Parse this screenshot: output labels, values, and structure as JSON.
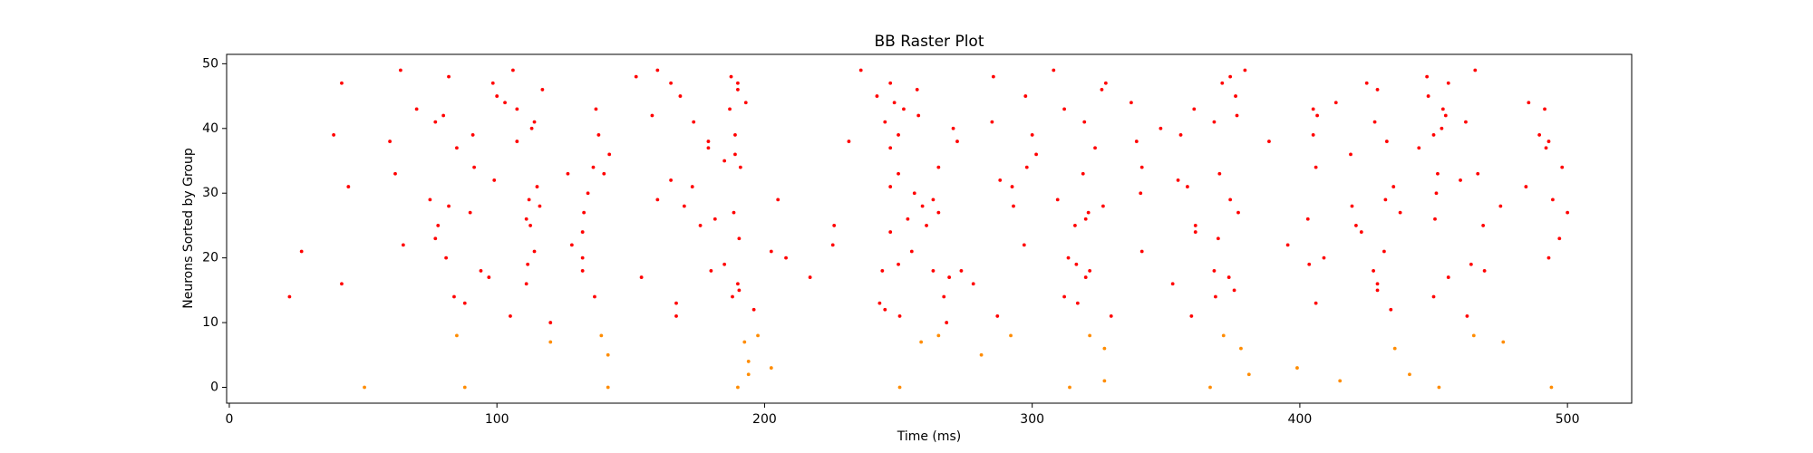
{
  "chart_data": {
    "type": "scatter",
    "title": "BB Raster Plot",
    "x_label": "Time (ms)",
    "y_label": "Neurons Sorted by Group",
    "xlim": [
      -1,
      524
    ],
    "ylim": [
      -2.45,
      51.45
    ],
    "xticks": [
      0,
      100,
      200,
      300,
      400,
      500
    ],
    "yticks": [
      0,
      10,
      20,
      30,
      40,
      50
    ],
    "series": [
      {
        "color": "#ff0000",
        "x": [
          22.5,
          27,
          39,
          42,
          42,
          44.5,
          60,
          62,
          64,
          65,
          70,
          75,
          77,
          78,
          77,
          80,
          82,
          82,
          81,
          84,
          85,
          88,
          90,
          91,
          91.5,
          94,
          97,
          98.5,
          99,
          100,
          103,
          105,
          106,
          107.5,
          107.5,
          111,
          111.5,
          112,
          112.5,
          111,
          113,
          114,
          114,
          115,
          116,
          117,
          120,
          126.5,
          128,
          132,
          132,
          132,
          132.5,
          134,
          136,
          136.5,
          137,
          138,
          140,
          142,
          152,
          154,
          158,
          160,
          160,
          165,
          165,
          167,
          167,
          168.5,
          170,
          173,
          173.5,
          176,
          179,
          179,
          180,
          181.5,
          185,
          185,
          187,
          187.5,
          188,
          188.5,
          189,
          189,
          190,
          190,
          190,
          190.5,
          190.5,
          191,
          193,
          196,
          202.5,
          205,
          208,
          217,
          225.5,
          226,
          231.5,
          236,
          242,
          243,
          244,
          245,
          245,
          247,
          247,
          247,
          247,
          248.5,
          250,
          250,
          250,
          250.5,
          252,
          253.5,
          255,
          256,
          257,
          257.5,
          259,
          260.5,
          263,
          263,
          265,
          265,
          267,
          268,
          269,
          270.5,
          272,
          273.5,
          278,
          285.5,
          285,
          287,
          288,
          292.5,
          293,
          297,
          297.5,
          298,
          300,
          301.5,
          308,
          309.5,
          312,
          312,
          313.5,
          316,
          316.5,
          317,
          319,
          319.5,
          320,
          320,
          321,
          321.5,
          323.5,
          326,
          326.5,
          327.5,
          329.5,
          337,
          339,
          340.5,
          341,
          341,
          348,
          352.5,
          354.5,
          355.5,
          358,
          359.5,
          360.5,
          361,
          361,
          368,
          368,
          368.5,
          369.5,
          370,
          371,
          373.5,
          374,
          374,
          375.5,
          376,
          376.5,
          377,
          379.5,
          388.5,
          395.5,
          403,
          403.5,
          405,
          405,
          406,
          406,
          406.5,
          409,
          413.5,
          419,
          419.5,
          421,
          423,
          425,
          427.5,
          428,
          429,
          429,
          429,
          431.5,
          432,
          432.5,
          434,
          435,
          437.5,
          444.5,
          447.5,
          448,
          450,
          450,
          450.5,
          451,
          451.5,
          453,
          453.5,
          454.5,
          455.5,
          455.5,
          460,
          462,
          462.5,
          464,
          465.5,
          466.5,
          468.5,
          469,
          475,
          484.5,
          485.5,
          489.5,
          491.5,
          492,
          493,
          493,
          494.5,
          497,
          498,
          500
        ],
        "values": [
          14,
          21,
          39,
          47,
          16,
          31,
          38,
          33,
          49,
          22,
          43,
          29,
          41,
          25,
          23,
          42,
          48,
          28,
          20,
          14,
          37,
          13,
          27,
          39,
          34,
          18,
          17,
          47,
          32,
          45,
          44,
          11,
          49,
          43,
          38,
          26,
          19,
          29,
          25,
          16,
          40,
          41,
          21,
          31,
          28,
          46,
          10,
          33,
          22,
          24,
          20,
          18,
          27,
          30,
          34,
          14,
          43,
          39,
          33,
          36,
          48,
          17,
          42,
          49,
          29,
          32,
          47,
          13,
          11,
          45,
          28,
          31,
          41,
          25,
          37,
          38,
          18,
          26,
          19,
          35,
          43,
          48,
          14,
          27,
          39,
          36,
          47,
          46,
          16,
          15,
          23,
          34,
          44,
          12,
          21,
          29,
          20,
          17,
          22,
          25,
          38,
          49,
          45,
          13,
          18,
          12,
          41,
          47,
          24,
          31,
          37,
          44,
          39,
          33,
          19,
          11,
          43,
          26,
          21,
          30,
          46,
          42,
          28,
          25,
          18,
          29,
          27,
          34,
          14,
          10,
          17,
          40,
          38,
          18,
          16,
          48,
          41,
          11,
          32,
          31,
          28,
          22,
          45,
          34,
          39,
          36,
          49,
          29,
          43,
          14,
          20,
          25,
          19,
          13,
          33,
          41,
          26,
          17,
          27,
          18,
          37,
          46,
          28,
          47,
          11,
          44,
          38,
          30,
          34,
          21,
          40,
          16,
          32,
          39,
          31,
          11,
          43,
          25,
          24,
          18,
          41,
          14,
          23,
          33,
          47,
          17,
          48,
          29,
          15,
          45,
          42,
          27,
          49,
          38,
          22,
          26,
          19,
          43,
          39,
          13,
          34,
          42,
          20,
          44,
          36,
          28,
          25,
          24,
          47,
          18,
          41,
          16,
          15,
          46,
          21,
          29,
          38,
          12,
          31,
          27,
          37,
          48,
          45,
          14,
          39,
          26,
          30,
          33,
          40,
          43,
          42,
          17,
          47,
          32,
          41,
          11,
          19,
          49,
          33,
          25,
          18,
          28,
          31,
          44,
          39,
          43,
          37,
          38,
          20,
          29,
          23,
          34,
          27
        ]
      },
      {
        "color": "#ff8c00",
        "x": [
          50.5,
          85,
          88,
          120,
          139,
          141.5,
          141.5,
          190,
          192.5,
          194,
          194,
          197.5,
          202.5,
          250.5,
          258.5,
          265,
          281,
          292,
          314,
          321.5,
          327,
          327,
          366.5,
          371.5,
          378,
          381,
          399,
          415,
          435.5,
          441,
          452,
          465,
          476,
          494
        ],
        "values": [
          0,
          8,
          0,
          7,
          8,
          5,
          0,
          0,
          7,
          4,
          2,
          8,
          3,
          0,
          7,
          8,
          5,
          8,
          0,
          8,
          6,
          1,
          0,
          8,
          6,
          2,
          3,
          1,
          6,
          2,
          0,
          8,
          7,
          0
        ]
      }
    ]
  }
}
